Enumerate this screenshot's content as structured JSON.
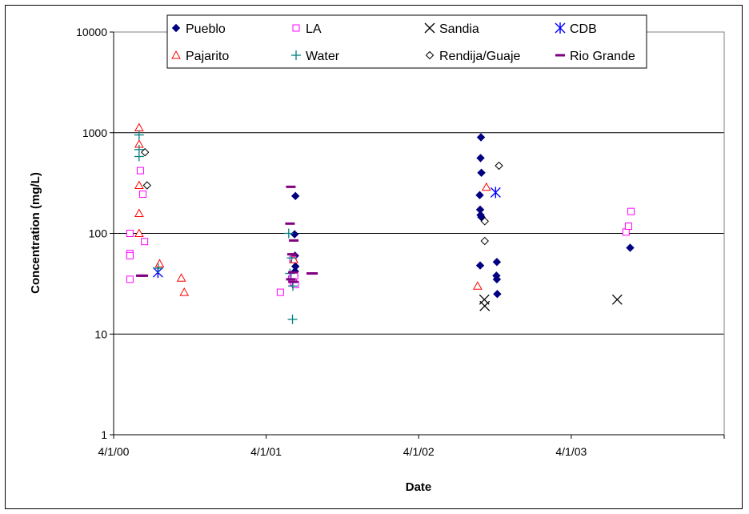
{
  "chart_data": {
    "type": "scatter",
    "title": "",
    "xlabel": "Date",
    "ylabel": "Concentration (mg/L)",
    "y_scale": "log",
    "ylim": [
      1,
      10000
    ],
    "xlim": [
      "2000-04-01",
      "2004-04-01"
    ],
    "yticks": [
      "1",
      "10",
      "100",
      "1000",
      "10000"
    ],
    "xticks": [
      {
        "label": "4/1/00",
        "date": "2000-04-01"
      },
      {
        "label": "4/1/01",
        "date": "2001-04-01"
      },
      {
        "label": "4/1/02",
        "date": "2002-04-01"
      },
      {
        "label": "4/1/03",
        "date": "2003-04-01"
      }
    ],
    "grid": "horizontal",
    "legend_position": "top",
    "series": [
      {
        "name": "Pueblo",
        "marker": "filled-diamond",
        "color": "#000080",
        "points": [
          [
            "2001-06-10",
            235
          ],
          [
            "2001-06-08",
            98
          ],
          [
            "2001-06-09",
            60
          ],
          [
            "2001-06-10",
            47
          ],
          [
            "2001-06-09",
            42
          ],
          [
            "2001-06-08",
            38
          ],
          [
            "2002-08-28",
            900
          ],
          [
            "2002-08-27",
            560
          ],
          [
            "2002-08-29",
            400
          ],
          [
            "2002-08-25",
            240
          ],
          [
            "2002-08-26",
            172
          ],
          [
            "2002-08-27",
            152
          ],
          [
            "2002-08-29",
            145
          ],
          [
            "2002-08-26",
            48
          ],
          [
            "2002-10-05",
            52
          ],
          [
            "2002-10-04",
            38
          ],
          [
            "2002-10-05",
            35
          ],
          [
            "2002-10-06",
            25
          ],
          [
            "2003-08-20",
            72
          ]
        ]
      },
      {
        "name": "LA",
        "marker": "open-square",
        "color": "#FF00FF",
        "points": [
          [
            "2000-05-10",
            100
          ],
          [
            "2000-05-10",
            63
          ],
          [
            "2000-05-10",
            60
          ],
          [
            "2000-05-10",
            35
          ],
          [
            "2000-06-04",
            420
          ],
          [
            "2000-06-10",
            245
          ],
          [
            "2000-06-14",
            83
          ],
          [
            "2001-05-05",
            26
          ],
          [
            "2001-06-01",
            35
          ],
          [
            "2001-06-05",
            33
          ],
          [
            "2001-06-08",
            38
          ],
          [
            "2001-06-10",
            31
          ],
          [
            "2001-06-04",
            55
          ],
          [
            "2003-08-10",
            103
          ],
          [
            "2003-08-16",
            118
          ],
          [
            "2003-08-22",
            165
          ]
        ]
      },
      {
        "name": "Sandia",
        "marker": "x",
        "color": "#000000",
        "points": [
          [
            "2002-09-05",
            22
          ],
          [
            "2002-09-06",
            19
          ],
          [
            "2003-07-20",
            22
          ]
        ]
      },
      {
        "name": "CDB",
        "marker": "asterisk",
        "color": "#0000FF",
        "points": [
          [
            "2000-07-16",
            41
          ],
          [
            "2002-10-02",
            255
          ]
        ]
      },
      {
        "name": "Pajarito",
        "marker": "open-triangle",
        "color": "#FF0000",
        "points": [
          [
            "2000-06-01",
            1120
          ],
          [
            "2000-06-01",
            770
          ],
          [
            "2000-06-01",
            300
          ],
          [
            "2000-06-01",
            158
          ],
          [
            "2000-06-01",
            100
          ],
          [
            "2000-07-20",
            50
          ],
          [
            "2000-09-10",
            36
          ],
          [
            "2000-09-17",
            26
          ],
          [
            "2001-06-06",
            55
          ],
          [
            "2002-08-20",
            30
          ],
          [
            "2002-09-10",
            288
          ]
        ]
      },
      {
        "name": "Water",
        "marker": "plus",
        "color": "#008080",
        "points": [
          [
            "2000-06-01",
            950
          ],
          [
            "2000-06-01",
            680
          ],
          [
            "2000-06-01",
            580
          ],
          [
            "2000-07-17",
            45
          ],
          [
            "2001-05-25",
            100
          ],
          [
            "2001-06-01",
            57
          ],
          [
            "2001-06-04",
            30
          ],
          [
            "2001-06-03",
            14
          ],
          [
            "2001-05-28",
            40
          ]
        ]
      },
      {
        "name": "Rendija/Guaje",
        "marker": "open-diamond",
        "color": "#000000",
        "points": [
          [
            "2000-06-15",
            640
          ],
          [
            "2000-06-20",
            300
          ],
          [
            "2002-09-06",
            132
          ],
          [
            "2002-09-06",
            84
          ],
          [
            "2002-10-10",
            470
          ]
        ]
      },
      {
        "name": "Rio Grande",
        "marker": "dash",
        "color": "#800080",
        "points": [
          [
            "2000-06-05",
            38
          ],
          [
            "2000-06-11",
            38
          ],
          [
            "2001-05-30",
            290
          ],
          [
            "2001-05-28",
            125
          ],
          [
            "2001-06-06",
            85
          ],
          [
            "2001-06-02",
            62
          ],
          [
            "2001-06-04",
            41
          ],
          [
            "2001-05-30",
            35
          ],
          [
            "2001-06-05",
            33
          ],
          [
            "2001-07-18",
            40
          ],
          [
            "2001-07-22",
            40
          ]
        ]
      }
    ]
  }
}
